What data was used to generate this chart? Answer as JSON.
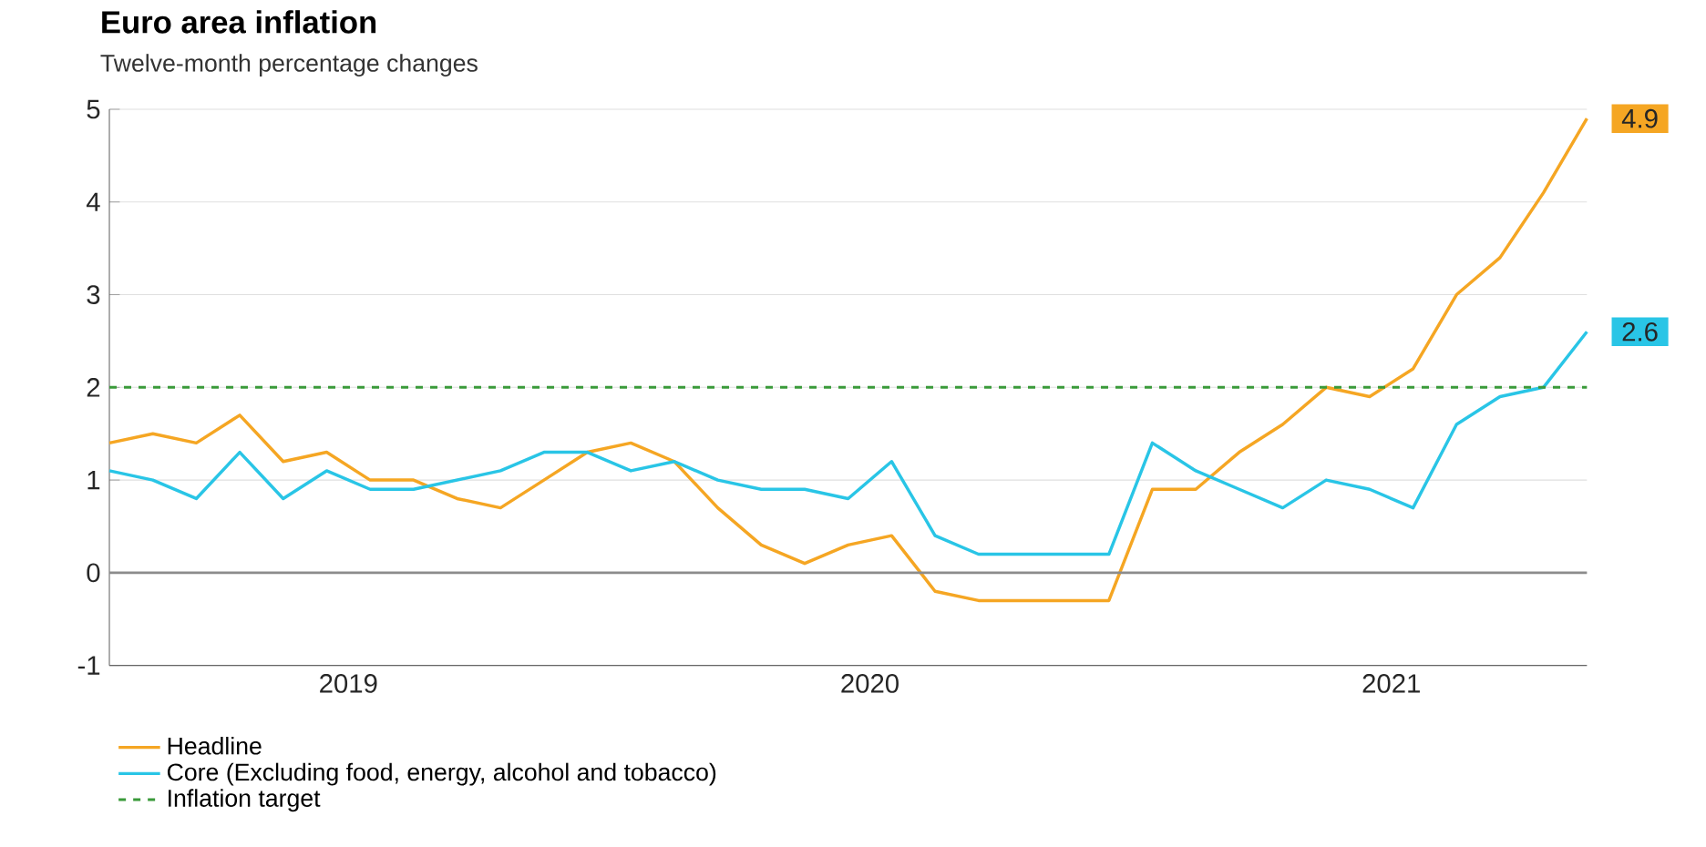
{
  "chart_data": {
    "type": "line",
    "title": "Euro area inflation",
    "subtitle": "Twelve-month percentage changes",
    "x": [
      "2019-01",
      "2019-02",
      "2019-03",
      "2019-04",
      "2019-05",
      "2019-06",
      "2019-07",
      "2019-08",
      "2019-09",
      "2019-10",
      "2019-11",
      "2019-12",
      "2020-01",
      "2020-02",
      "2020-03",
      "2020-04",
      "2020-05",
      "2020-06",
      "2020-07",
      "2020-08",
      "2020-09",
      "2020-10",
      "2020-11",
      "2020-12",
      "2021-01",
      "2021-02",
      "2021-03",
      "2021-04",
      "2021-05",
      "2021-06",
      "2021-07",
      "2021-08",
      "2021-09",
      "2021-10",
      "2021-11"
    ],
    "series": [
      {
        "name": "Headline",
        "color": "#f5a623",
        "values": [
          1.4,
          1.5,
          1.4,
          1.7,
          1.2,
          1.3,
          1.0,
          1.0,
          0.8,
          0.7,
          1.0,
          1.3,
          1.4,
          1.2,
          0.7,
          0.3,
          0.1,
          0.3,
          0.4,
          -0.2,
          -0.3,
          -0.3,
          -0.3,
          -0.3,
          0.9,
          0.9,
          1.3,
          1.6,
          2.0,
          1.9,
          2.2,
          3.0,
          3.4,
          4.1,
          4.9
        ],
        "value_labels": [
          null,
          null,
          null,
          null,
          null,
          null,
          null,
          null,
          null,
          null,
          null,
          null,
          null,
          null,
          null,
          null,
          null,
          null,
          null,
          null,
          null,
          null,
          null,
          null,
          null,
          null,
          null,
          null,
          null,
          null,
          null,
          null,
          null,
          null,
          "4.9"
        ]
      },
      {
        "name": "Core (Excluding food, energy, alcohol and tobacco)",
        "color": "#29c5e6",
        "values": [
          1.1,
          1.0,
          0.8,
          1.3,
          0.8,
          1.1,
          0.9,
          0.9,
          1.0,
          1.1,
          1.3,
          1.3,
          1.1,
          1.2,
          1.0,
          0.9,
          0.9,
          0.8,
          1.2,
          0.4,
          0.2,
          0.2,
          0.2,
          0.2,
          1.4,
          1.1,
          0.9,
          0.7,
          1.0,
          0.9,
          0.7,
          1.6,
          1.9,
          2.0,
          2.6
        ],
        "value_labels": [
          null,
          null,
          null,
          null,
          null,
          null,
          null,
          null,
          null,
          null,
          null,
          null,
          null,
          null,
          null,
          null,
          null,
          null,
          null,
          null,
          null,
          null,
          null,
          null,
          null,
          null,
          null,
          null,
          null,
          null,
          null,
          null,
          null,
          null,
          "2.6"
        ]
      }
    ],
    "ref_lines": [
      {
        "axis": "y",
        "value": 2,
        "label": "Inflation target",
        "color": "#3a9a3a",
        "line_style": "dashed"
      },
      {
        "axis": "y",
        "value": 0,
        "color": "#8c8c8c",
        "line_style": "solid"
      }
    ],
    "xlim": [
      "2019-01",
      "2021-11"
    ],
    "xticks": [
      {
        "value": "2019-06-16",
        "label": "2019"
      },
      {
        "value": "2020-06-16",
        "label": "2020"
      },
      {
        "value": "2021-06-16",
        "label": "2021"
      }
    ],
    "ylim": [
      -1,
      5
    ],
    "yticks": [
      -1,
      0,
      1,
      2,
      3,
      4,
      5
    ],
    "grid": "y",
    "legend": "bottom",
    "marker": "none",
    "line_style": "solid"
  }
}
